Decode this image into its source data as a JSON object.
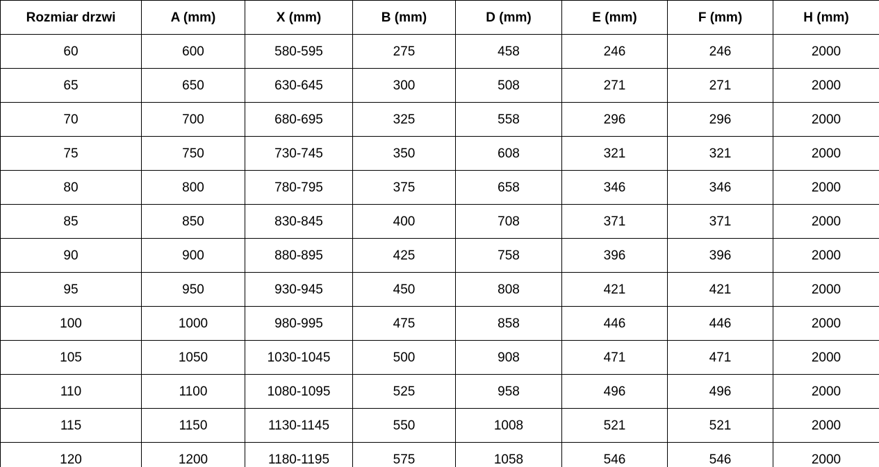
{
  "chart_data": {
    "type": "table",
    "title": "",
    "columns": [
      "Rozmiar drzwi",
      "A (mm)",
      "X (mm)",
      "B (mm)",
      "D (mm)",
      "E (mm)",
      "F (mm)",
      "H (mm)"
    ],
    "rows": [
      [
        "60",
        "600",
        "580-595",
        "275",
        "458",
        "246",
        "246",
        "2000"
      ],
      [
        "65",
        "650",
        "630-645",
        "300",
        "508",
        "271",
        "271",
        "2000"
      ],
      [
        "70",
        "700",
        "680-695",
        "325",
        "558",
        "296",
        "296",
        "2000"
      ],
      [
        "75",
        "750",
        "730-745",
        "350",
        "608",
        "321",
        "321",
        "2000"
      ],
      [
        "80",
        "800",
        "780-795",
        "375",
        "658",
        "346",
        "346",
        "2000"
      ],
      [
        "85",
        "850",
        "830-845",
        "400",
        "708",
        "371",
        "371",
        "2000"
      ],
      [
        "90",
        "900",
        "880-895",
        "425",
        "758",
        "396",
        "396",
        "2000"
      ],
      [
        "95",
        "950",
        "930-945",
        "450",
        "808",
        "421",
        "421",
        "2000"
      ],
      [
        "100",
        "1000",
        "980-995",
        "475",
        "858",
        "446",
        "446",
        "2000"
      ],
      [
        "105",
        "1050",
        "1030-1045",
        "500",
        "908",
        "471",
        "471",
        "2000"
      ],
      [
        "110",
        "1100",
        "1080-1095",
        "525",
        "958",
        "496",
        "496",
        "2000"
      ],
      [
        "115",
        "1150",
        "1130-1145",
        "550",
        "1008",
        "521",
        "521",
        "2000"
      ],
      [
        "120",
        "1200",
        "1180-1195",
        "575",
        "1058",
        "546",
        "546",
        "2000"
      ]
    ],
    "layout": {
      "grid": "all-borders",
      "header_bold": true,
      "text_align": "center"
    },
    "colors": {
      "border": "#000000",
      "text": "#000000",
      "background": "#ffffff"
    }
  }
}
